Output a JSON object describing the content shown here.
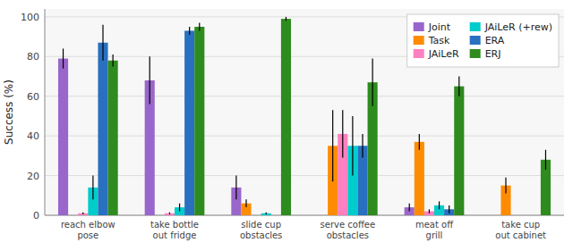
{
  "chart_data": {
    "type": "bar",
    "categories": [
      "reach elbow\npose",
      "take bottle\nout fridge",
      "slide cup\nobstacles",
      "serve coffee\nobstacles",
      "meat off\ngrill",
      "take cup\nout cabinet"
    ],
    "series": [
      {
        "name": "Joint",
        "color": "#9966cc",
        "values": [
          79,
          68,
          14,
          0,
          4,
          0
        ],
        "errors": [
          5,
          12,
          6,
          0,
          2,
          0
        ]
      },
      {
        "name": "Task",
        "color": "#ff8c00",
        "values": [
          0,
          0,
          6,
          35,
          37,
          15
        ],
        "errors": [
          0,
          0,
          2,
          18,
          4,
          4
        ]
      },
      {
        "name": "JAiLeR",
        "color": "#ff80c0",
        "values": [
          1,
          1,
          0,
          41,
          2,
          0
        ],
        "errors": [
          0.5,
          0.5,
          0,
          12,
          1,
          0
        ]
      },
      {
        "name": "JAiLeR (+rew)",
        "color": "#00cccc",
        "values": [
          14,
          4,
          1,
          35,
          5,
          0
        ],
        "errors": [
          6,
          2,
          0.5,
          15,
          2,
          0
        ]
      },
      {
        "name": "ERA",
        "color": "#2970c0",
        "values": [
          87,
          93,
          0,
          35,
          3,
          0
        ],
        "errors": [
          9,
          2,
          0,
          6,
          2,
          0
        ]
      },
      {
        "name": "ERJ",
        "color": "#2e8b1e",
        "values": [
          78,
          95,
          99,
          67,
          65,
          28
        ],
        "errors": [
          3,
          2,
          1,
          12,
          5,
          5
        ]
      }
    ],
    "y_label": "Success (%)",
    "ylim": [
      0,
      104
    ],
    "yticks": [
      0,
      20,
      40,
      60,
      80,
      100
    ],
    "grid": true,
    "legend": "upper right"
  }
}
